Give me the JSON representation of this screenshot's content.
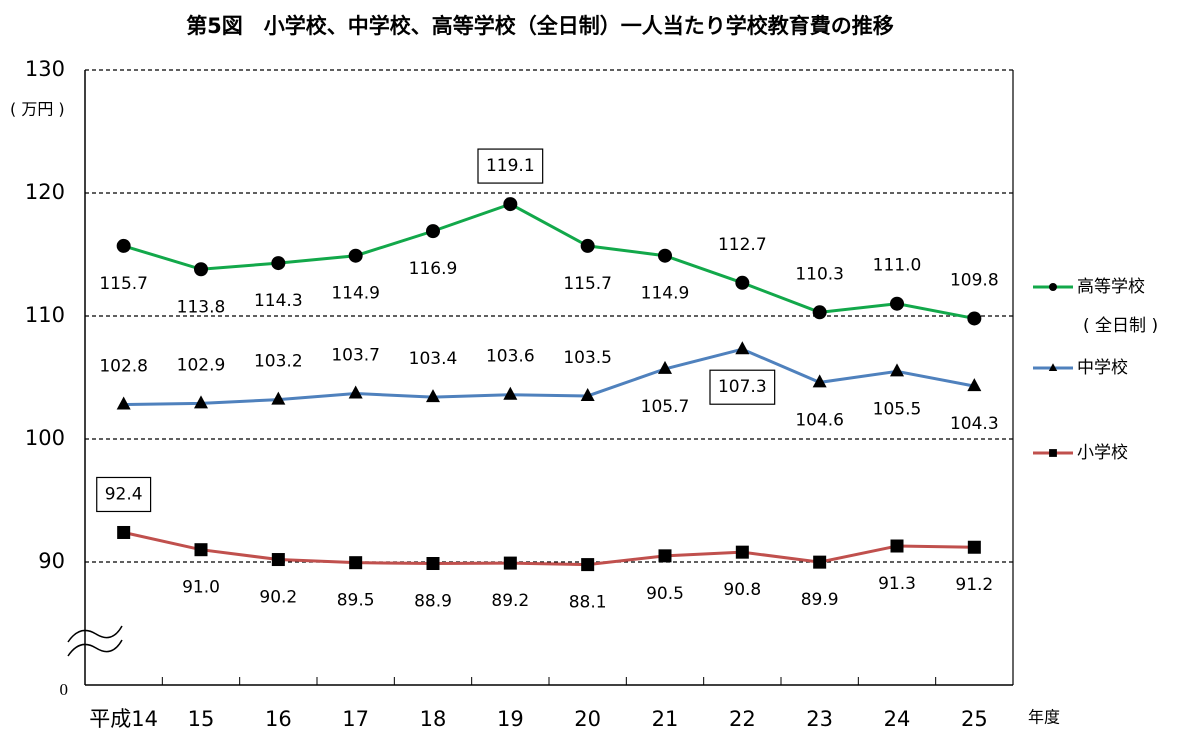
{
  "chart_data": {
    "type": "line",
    "title": "第5図　小学校、中学校、高等学校（全日制）一人当たり学校教育費の推移",
    "y_label": "( 万円 )",
    "x_label": "年度",
    "categories": [
      "平成14",
      "15",
      "16",
      "17",
      "18",
      "19",
      "20",
      "21",
      "22",
      "23",
      "24",
      "25"
    ],
    "ylim": [
      0,
      130
    ],
    "yticks": [
      0,
      90,
      100,
      110,
      120,
      130
    ],
    "axis_break": true,
    "grid": true,
    "legend": "right",
    "series": [
      {
        "name": "高等学校",
        "name_note": "( 全日制 )",
        "color": "#12a84a",
        "marker": "circle",
        "values": [
          115.7,
          113.8,
          114.3,
          114.9,
          116.9,
          119.1,
          115.7,
          114.9,
          112.7,
          110.3,
          111.0,
          109.8
        ],
        "value_labels": [
          "115.7",
          "113.8",
          "114.3",
          "114.9",
          "116.9",
          "119.1",
          "115.7",
          "114.9",
          "112.7",
          "110.3",
          "111.0",
          "109.8"
        ],
        "label_pos": [
          "below",
          "below",
          "below",
          "below",
          "below",
          "above",
          "below",
          "below",
          "above",
          "above",
          "above",
          "above"
        ],
        "boxed": 5
      },
      {
        "name": "中学校",
        "color": "#4f81bd",
        "marker": "triangle",
        "values": [
          102.8,
          102.9,
          103.2,
          103.7,
          103.4,
          103.6,
          103.5,
          105.7,
          107.3,
          104.6,
          105.5,
          104.3
        ],
        "value_labels": [
          "102.8",
          "102.9",
          "103.2",
          "103.7",
          "103.4",
          "103.6",
          "103.5",
          "105.7",
          "107.3",
          "104.6",
          "105.5",
          "104.3"
        ],
        "label_pos": [
          "above",
          "above",
          "above",
          "above",
          "above",
          "above",
          "above",
          "below",
          "below",
          "below",
          "below",
          "below"
        ],
        "boxed": 8
      },
      {
        "name": "小学校",
        "color": "#c0504d",
        "marker": "square",
        "values": [
          92.4,
          91.0,
          90.2,
          89.5,
          88.9,
          89.2,
          88.1,
          90.5,
          90.8,
          89.9,
          91.3,
          91.2
        ],
        "value_labels": [
          "92.4",
          "91.0",
          "90.2",
          "89.5",
          "88.9",
          "89.2",
          "88.1",
          "90.5",
          "90.8",
          "89.9",
          "91.3",
          "91.2"
        ],
        "label_pos": [
          "above",
          "below",
          "below",
          "below",
          "below",
          "below",
          "below",
          "below",
          "below",
          "below",
          "below",
          "below"
        ],
        "boxed": 0
      }
    ]
  }
}
